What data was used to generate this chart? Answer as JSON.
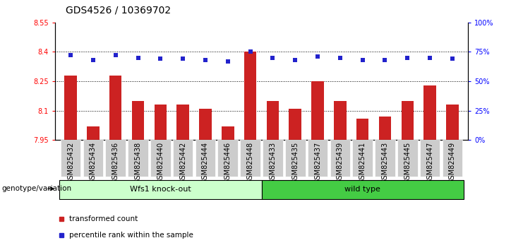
{
  "title": "GDS4526 / 10369702",
  "samples": [
    "GSM825432",
    "GSM825434",
    "GSM825436",
    "GSM825438",
    "GSM825440",
    "GSM825442",
    "GSM825444",
    "GSM825446",
    "GSM825448",
    "GSM825433",
    "GSM825435",
    "GSM825437",
    "GSM825439",
    "GSM825441",
    "GSM825443",
    "GSM825445",
    "GSM825447",
    "GSM825449"
  ],
  "bar_values": [
    8.28,
    8.02,
    8.28,
    8.15,
    8.13,
    8.13,
    8.11,
    8.02,
    8.4,
    8.15,
    8.11,
    8.25,
    8.15,
    8.06,
    8.07,
    8.15,
    8.23,
    8.13
  ],
  "dot_values": [
    72,
    68,
    72,
    70,
    69,
    69,
    68,
    67,
    75,
    70,
    68,
    71,
    70,
    68,
    68,
    70,
    70,
    69
  ],
  "ylim_left": [
    7.95,
    8.55
  ],
  "ylim_right": [
    0,
    100
  ],
  "yticks_left": [
    7.95,
    8.1,
    8.25,
    8.4,
    8.55
  ],
  "ytick_labels_left": [
    "7.95",
    "8.1",
    "8.25",
    "8.4",
    "8.55"
  ],
  "yticks_right": [
    0,
    25,
    50,
    75,
    100
  ],
  "ytick_labels_right": [
    "0%",
    "25%",
    "50%",
    "75%",
    "100%"
  ],
  "bar_color": "#cc2222",
  "dot_color": "#2222cc",
  "group1_label": "Wfs1 knock-out",
  "group2_label": "wild type",
  "group1_color": "#ccffcc",
  "group2_color": "#44cc44",
  "group1_n": 9,
  "group2_n": 9,
  "legend_bar_label": "transformed count",
  "legend_dot_label": "percentile rank within the sample",
  "genotype_label": "genotype/variation",
  "tick_bg_color": "#cccccc",
  "grid_dotted_ticks": [
    8.1,
    8.25,
    8.4
  ],
  "title_fontsize": 10,
  "tick_fontsize": 7,
  "bar_bottom": 7.95
}
